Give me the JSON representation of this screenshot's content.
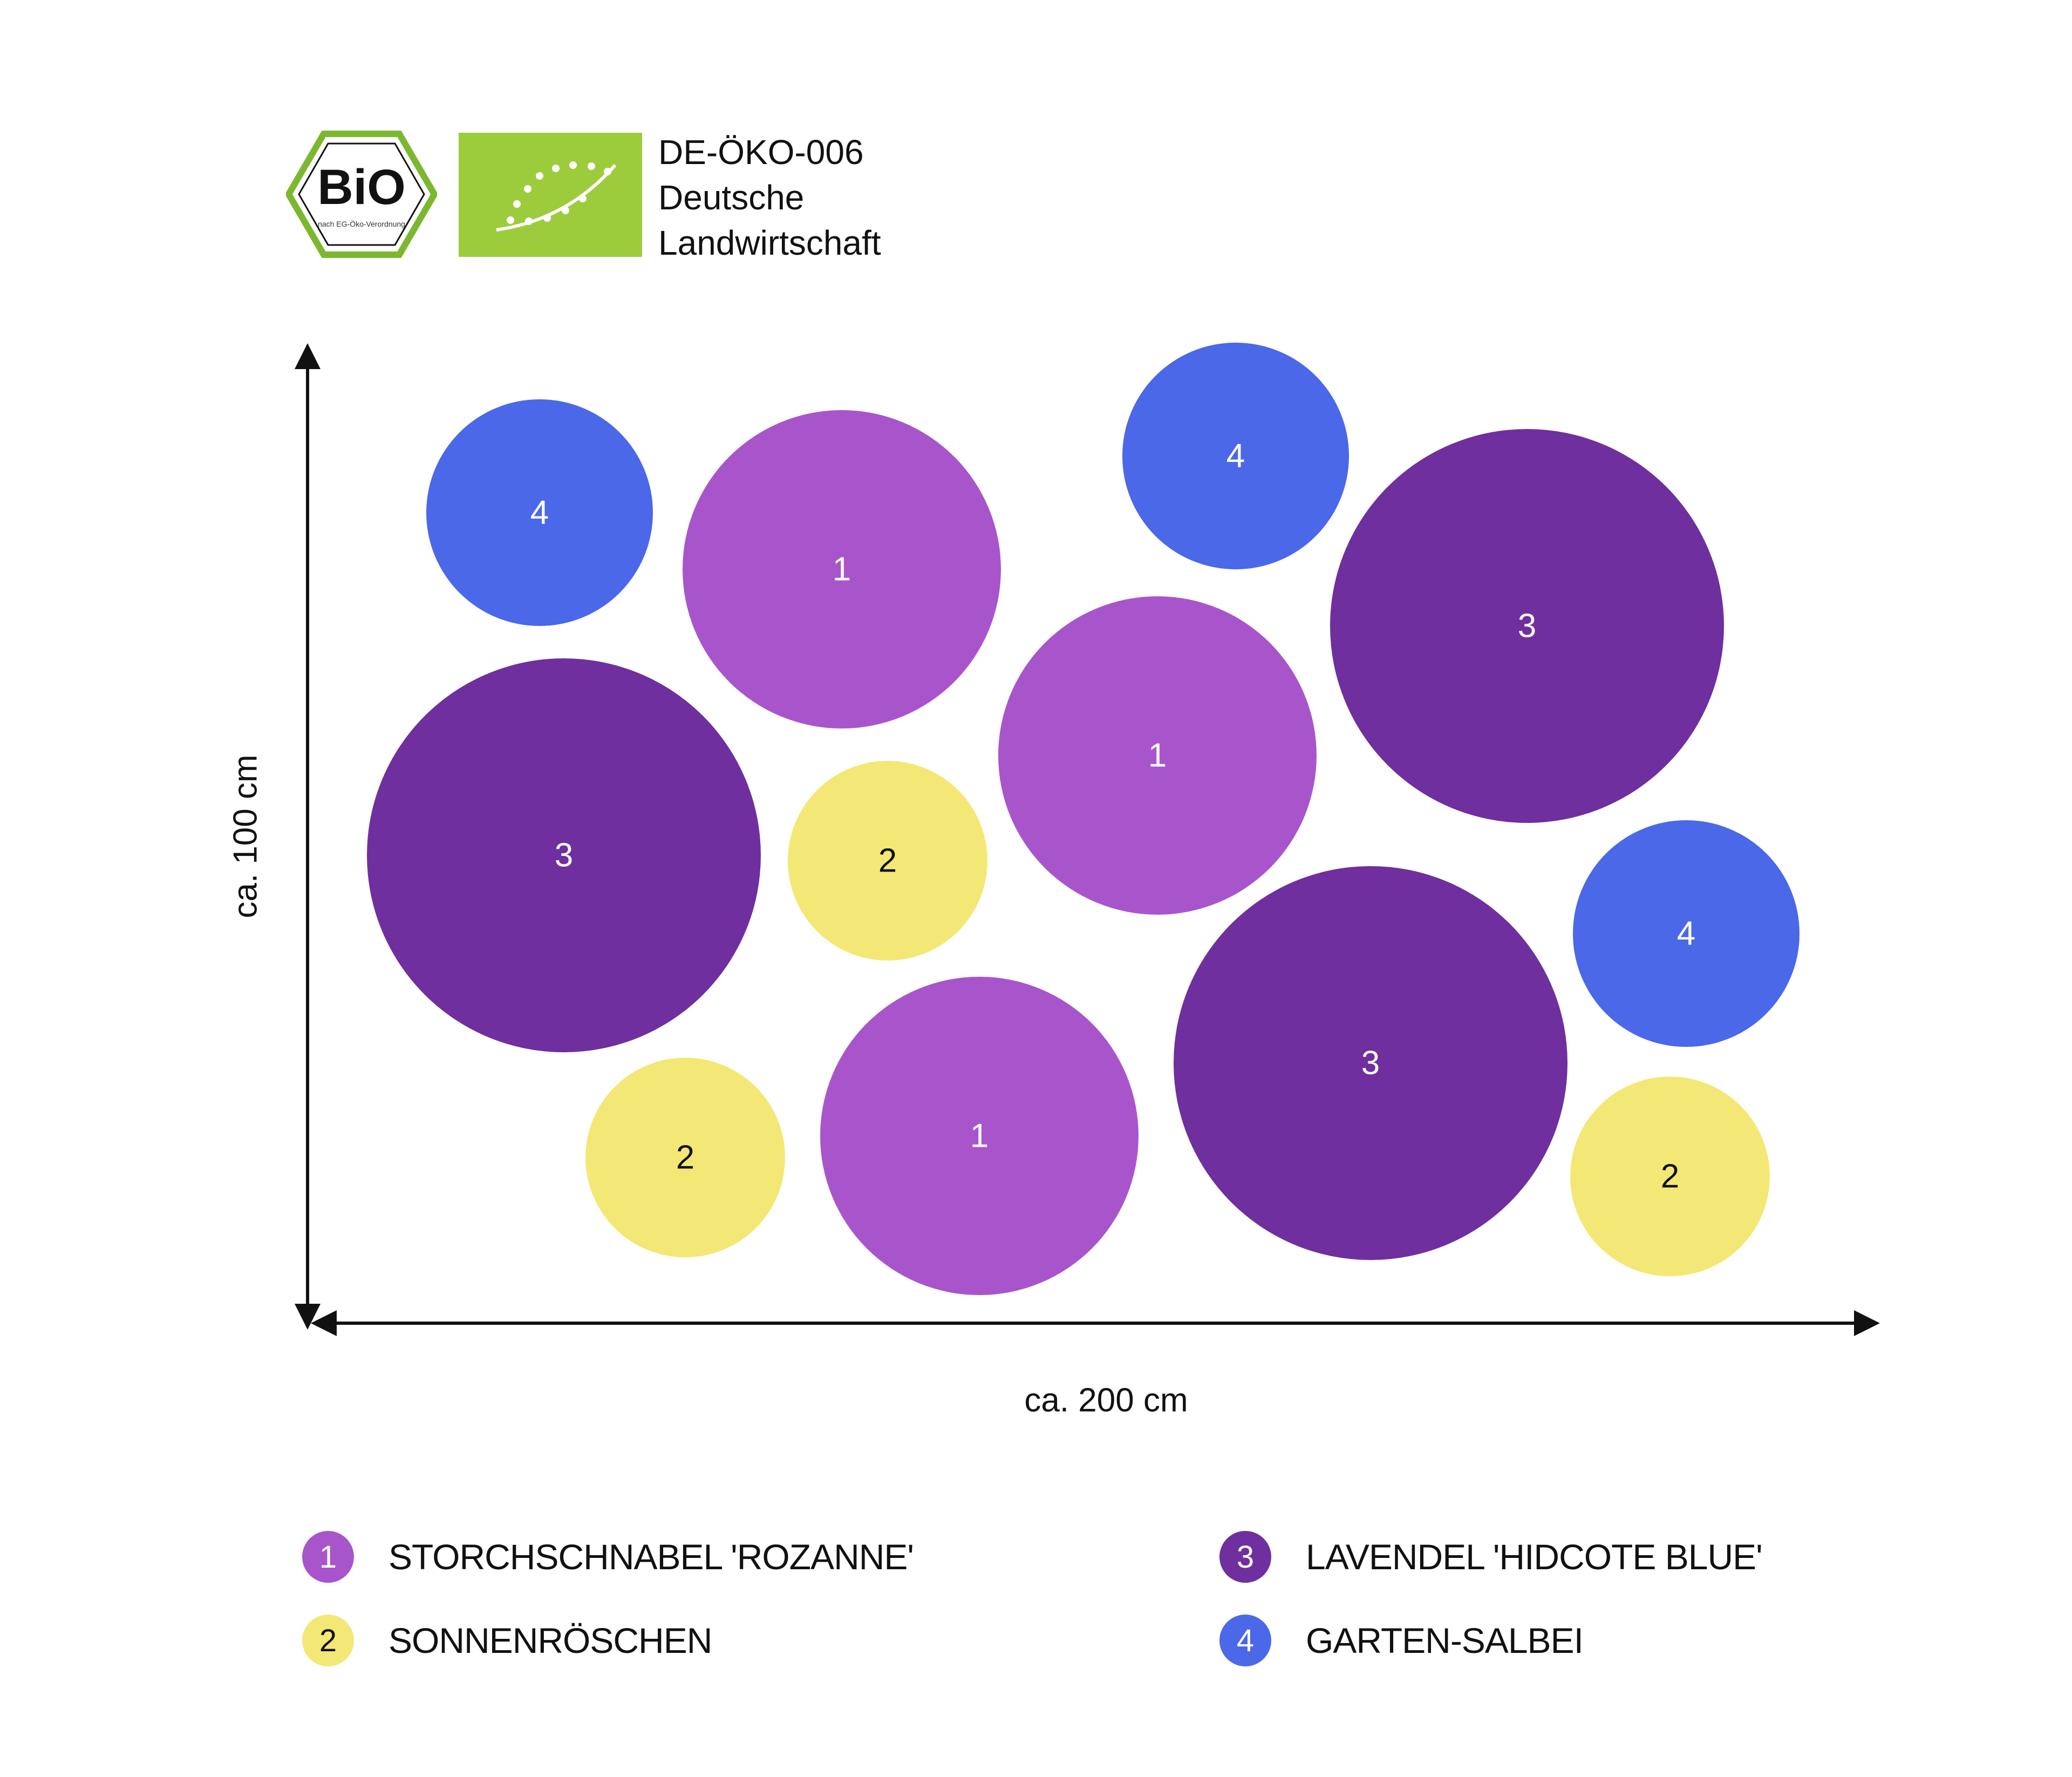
{
  "certification": {
    "bio_logo_text": "BIO",
    "bio_logo_subtext": "nach EG-Öko-Verordnung",
    "eu_logo": "eu-organic-leaf-icon",
    "code": "DE-ÖKO-006",
    "origin_line1": "Deutsche",
    "origin_line2": "Landwirtschaft"
  },
  "dimensions": {
    "height_label": "ca. 100 cm",
    "width_label": "ca. 200 cm"
  },
  "plants": [
    {
      "id": "1",
      "name": "STORCHSCHNABEL 'ROZANNE'",
      "color": "#a855cc",
      "text_color": "#ffffff"
    },
    {
      "id": "2",
      "name": "SONNENRÖSCHEN",
      "color": "#f3e875",
      "text_color": "#111111"
    },
    {
      "id": "3",
      "name": "LAVENDEL 'HIDCOTE BLUE'",
      "color": "#6f2f9e",
      "text_color": "#ffffff"
    },
    {
      "id": "4",
      "name": "GARTEN-SALBEI",
      "color": "#4a68e8",
      "text_color": "#ffffff"
    }
  ],
  "plan_counts": {
    "1": 3,
    "2": 3,
    "3": 3,
    "4": 3
  }
}
